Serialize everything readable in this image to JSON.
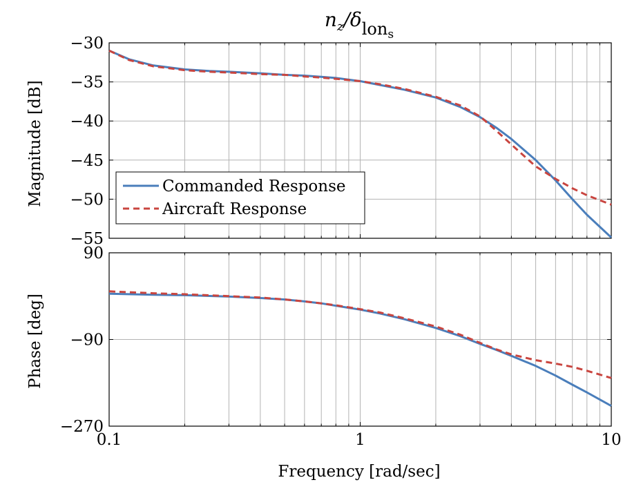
{
  "chart_data": {
    "type": "line",
    "title": {
      "base": "n",
      "base_sub": "z",
      "slash": "/δ",
      "sub": "lon",
      "subsub": "s"
    },
    "xlabel": "Frequency [rad/sec]",
    "x_scale": "log",
    "xlim": [
      0.1,
      10
    ],
    "x_ticks": [
      0.1,
      1,
      10
    ],
    "x_tick_labels": [
      "0.1",
      "1",
      "10"
    ],
    "grid": true,
    "colors": {
      "commanded": "#4a7ebb",
      "aircraft": "#c9453f"
    },
    "legend": {
      "placement": "lower-left of magnitude plot",
      "entries": [
        "Commanded Response",
        "Aircraft Response"
      ]
    },
    "subplots": [
      {
        "name": "magnitude",
        "ylabel": "Magnitude [dB]",
        "ylim": [
          -55,
          -30
        ],
        "y_ticks": [
          -30,
          -35,
          -40,
          -45,
          -50,
          -55
        ],
        "y_tick_labels": [
          "−30",
          "−35",
          "−40",
          "−45",
          "−50",
          "−55"
        ],
        "series": [
          {
            "name": "Commanded Response",
            "style": "solid",
            "x": [
              0.1,
              0.12,
              0.15,
              0.2,
              0.25,
              0.3,
              0.4,
              0.5,
              0.6,
              0.7,
              0.8,
              1.0,
              1.2,
              1.5,
              2.0,
              2.5,
              3.0,
              3.5,
              4.0,
              5.0,
              6.0,
              7.0,
              8.0,
              10.0
            ],
            "values": [
              -31.0,
              -32.1,
              -32.9,
              -33.4,
              -33.6,
              -33.7,
              -33.9,
              -34.1,
              -34.2,
              -34.35,
              -34.5,
              -34.9,
              -35.4,
              -36.0,
              -37.0,
              -38.2,
              -39.5,
              -40.9,
              -42.3,
              -45.0,
              -47.6,
              -50.0,
              -52.0,
              -54.9
            ]
          },
          {
            "name": "Aircraft Response",
            "style": "dashed",
            "x": [
              0.1,
              0.12,
              0.15,
              0.2,
              0.25,
              0.3,
              0.4,
              0.5,
              0.6,
              0.7,
              0.8,
              1.0,
              1.2,
              1.5,
              2.0,
              2.5,
              3.0,
              3.5,
              4.0,
              5.0,
              6.0,
              7.0,
              8.0,
              10.0
            ],
            "values": [
              -31.0,
              -32.2,
              -33.0,
              -33.5,
              -33.7,
              -33.8,
              -34.0,
              -34.1,
              -34.3,
              -34.45,
              -34.6,
              -34.9,
              -35.3,
              -35.9,
              -36.9,
              -38.0,
              -39.4,
              -41.3,
              -43.0,
              -45.8,
              -47.4,
              -48.6,
              -49.5,
              -50.7
            ]
          }
        ]
      },
      {
        "name": "phase",
        "ylabel": "Phase [deg]",
        "ylim": [
          -270,
          90
        ],
        "y_ticks": [
          90,
          -90,
          -270
        ],
        "y_tick_labels": [
          "90",
          "−90",
          "−270"
        ],
        "series": [
          {
            "name": "Commanded Response",
            "style": "solid",
            "x": [
              0.1,
              0.15,
              0.2,
              0.3,
              0.4,
              0.5,
              0.6,
              0.7,
              0.8,
              1.0,
              1.2,
              1.5,
              2.0,
              2.5,
              3.0,
              3.5,
              4.0,
              5.0,
              6.0,
              7.0,
              8.0,
              10.0
            ],
            "values": [
              5,
              3,
              2,
              -1,
              -4,
              -7,
              -11,
              -15,
              -20,
              -28,
              -36,
              -48,
              -66,
              -83,
              -99,
              -112,
              -124,
              -145,
              -165,
              -184,
              -200,
              -228
            ]
          },
          {
            "name": "Aircraft Response",
            "style": "dashed",
            "x": [
              0.1,
              0.15,
              0.2,
              0.3,
              0.4,
              0.5,
              0.6,
              0.7,
              0.8,
              1.0,
              1.2,
              1.5,
              2.0,
              2.5,
              3.0,
              3.5,
              4.0,
              5.0,
              6.0,
              7.0,
              8.0,
              10.0
            ],
            "values": [
              10,
              6,
              4,
              0,
              -3,
              -7,
              -11,
              -15,
              -19,
              -27,
              -34,
              -46,
              -63,
              -80,
              -97,
              -111,
              -121,
              -133,
              -140,
              -147,
              -155,
              -170
            ]
          }
        ]
      }
    ]
  }
}
